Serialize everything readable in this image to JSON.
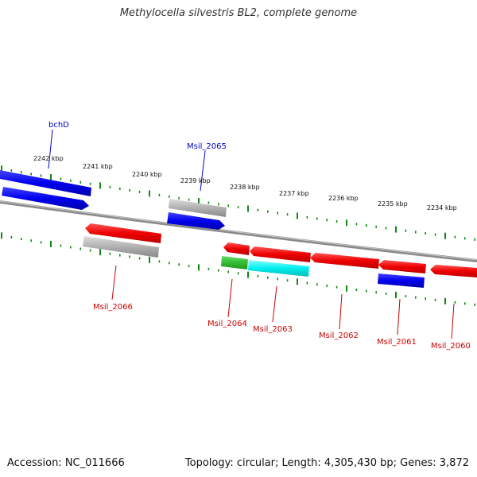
{
  "title": "Methylocella silvestris BL2, complete genome",
  "footer": {
    "accession": "Accession: NC_011666",
    "topology": "Topology: circular; Length: 4,305,430 bp; Genes: 3,872"
  },
  "kbp_labels": [
    "2242 kbp",
    "2241 kbp",
    "2240 kbp",
    "2239 kbp",
    "2238 kbp",
    "2237 kbp",
    "2236 kbp",
    "2235 kbp",
    "2234 kbp"
  ],
  "gene_labels": {
    "bchD": "bchD",
    "msil_2065": "Msil_2065",
    "msil_2066": "Msil_2066",
    "msil_2064": "Msil_2064",
    "msil_2063": "Msil_2063",
    "msil_2062": "Msil_2062",
    "msil_2061": "Msil_2061",
    "msil_2060": "Msil_2060"
  },
  "colors": {
    "blue": "#0000ee",
    "red": "#ee0000",
    "gray": "#b0b0b0",
    "green": "#33bb33",
    "cyan": "#00eeee",
    "tick": "#118811",
    "backbone": "#808080"
  }
}
